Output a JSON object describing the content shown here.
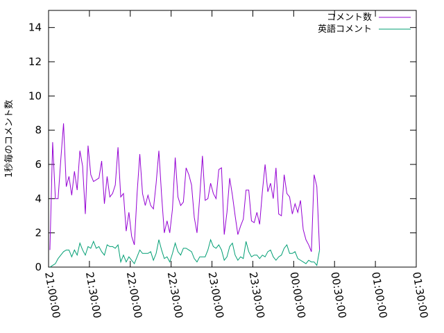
{
  "chart_data": {
    "type": "line",
    "title": "",
    "xlabel": "",
    "ylabel": "1秒毎のコメント数",
    "ylim": [
      0,
      15
    ],
    "yticks": [
      "0",
      "2",
      "4",
      "6",
      "8",
      "10",
      "12",
      "14"
    ],
    "xlim": [
      "21:00:00",
      "01:30:00"
    ],
    "xticks": [
      "21:00:00",
      "21:30:00",
      "22:00:00",
      "22:30:00",
      "23:00:00",
      "23:30:00",
      "00:00:00",
      "00:30:00",
      "01:00:00",
      "01:30:00"
    ],
    "grid": false,
    "legend_position": "top-right",
    "x_step_seconds": 120,
    "series": [
      {
        "name": "コメント数",
        "color": "#9400d3",
        "values": [
          1.0,
          7.3,
          4.0,
          4.0,
          6.3,
          8.4,
          4.7,
          5.3,
          4.2,
          5.6,
          4.5,
          6.8,
          5.9,
          3.1,
          7.1,
          5.4,
          5.0,
          5.1,
          5.2,
          6.2,
          3.7,
          5.3,
          4.1,
          4.3,
          4.8,
          7.0,
          4.1,
          4.3,
          2.1,
          3.2,
          1.8,
          1.3,
          4.3,
          6.6,
          4.3,
          3.6,
          4.2,
          3.6,
          3.4,
          4.9,
          6.8,
          4.2,
          2.0,
          2.7,
          2.0,
          3.4,
          6.4,
          4.1,
          3.6,
          3.8,
          5.8,
          5.4,
          4.8,
          2.9,
          2.0,
          4.1,
          6.5,
          3.9,
          4.0,
          4.9,
          4.3,
          4.0,
          5.7,
          5.8,
          1.9,
          3.2,
          5.2,
          4.2,
          3.0,
          1.9,
          2.4,
          2.8,
          4.5,
          4.5,
          2.7,
          2.6,
          3.2,
          2.5,
          4.4,
          6.0,
          4.4,
          4.9,
          4.0,
          5.8,
          3.1,
          3.0,
          5.4,
          4.3,
          4.1,
          3.1,
          3.7,
          3.2,
          3.9,
          2.2,
          1.6,
          1.3,
          0.9,
          5.4,
          4.7,
          1.0
        ]
      },
      {
        "name": "英語コメント",
        "color": "#009e73",
        "values": [
          0.0,
          0.1,
          0.2,
          0.5,
          0.7,
          0.9,
          1.0,
          1.0,
          0.6,
          1.0,
          0.7,
          1.4,
          1.0,
          0.7,
          1.2,
          1.1,
          1.5,
          1.1,
          1.2,
          0.9,
          0.7,
          1.3,
          1.2,
          1.2,
          1.1,
          1.3,
          0.3,
          0.7,
          0.3,
          0.6,
          0.4,
          0.2,
          0.6,
          1.0,
          0.8,
          0.8,
          0.8,
          0.9,
          0.4,
          0.8,
          1.6,
          1.0,
          0.5,
          0.6,
          0.3,
          0.8,
          1.4,
          0.9,
          0.7,
          1.1,
          1.1,
          1.0,
          0.9,
          0.5,
          0.3,
          0.6,
          0.6,
          0.6,
          1.0,
          1.6,
          1.2,
          1.1,
          1.3,
          1.0,
          0.4,
          0.6,
          1.2,
          1.4,
          0.7,
          0.4,
          0.6,
          0.5,
          1.5,
          0.9,
          0.6,
          0.7,
          0.7,
          0.5,
          0.7,
          0.6,
          0.9,
          1.0,
          0.6,
          0.4,
          0.6,
          0.7,
          1.1,
          1.3,
          0.8,
          0.8,
          0.9,
          0.5,
          0.4,
          0.3,
          0.2,
          0.4,
          0.3,
          0.3,
          0.1,
          1.0
        ]
      }
    ]
  }
}
